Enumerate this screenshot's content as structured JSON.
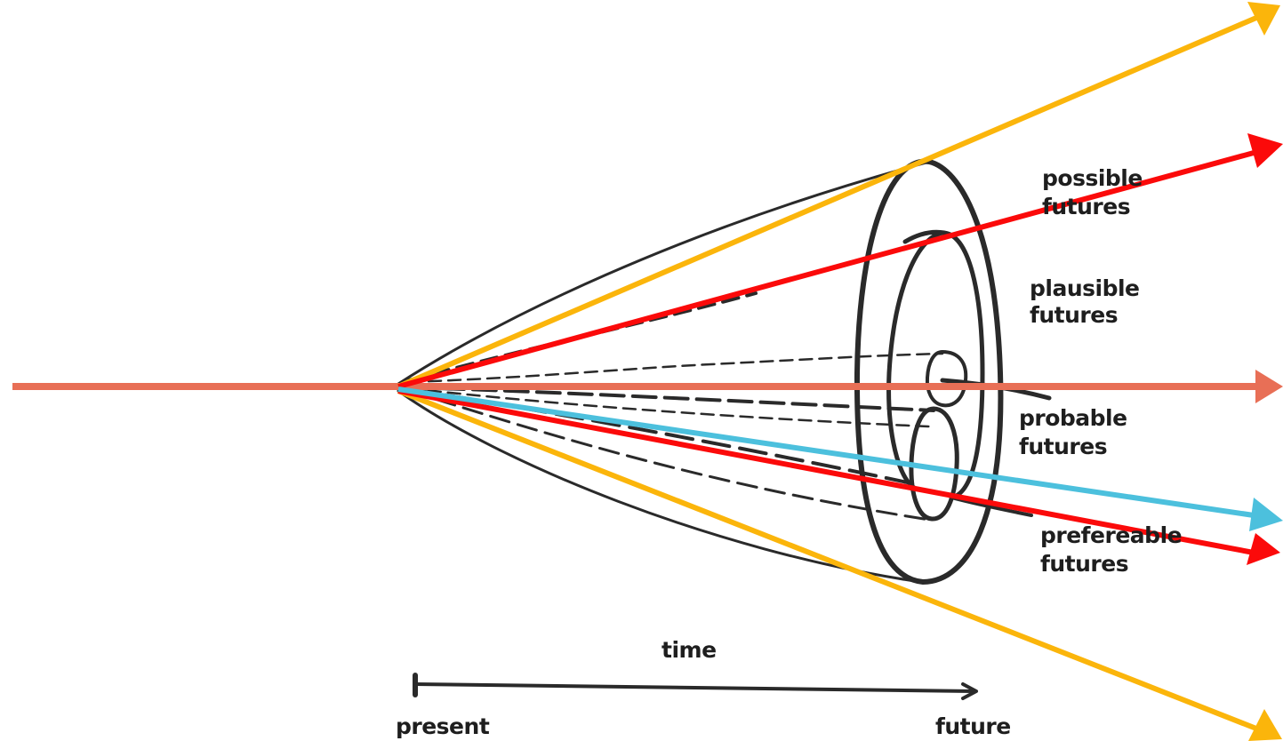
{
  "labels": {
    "possible_line1": "possible",
    "possible_line2": "futures",
    "plausible_line1": "plausible",
    "plausible_line2": "futures",
    "probable_line1": "probable",
    "probable_line2": "futures",
    "preferable_line1": "prefereable",
    "preferable_line2": "futures",
    "time": "time",
    "present": "present",
    "future": "future"
  },
  "colors": {
    "background": "#ffffff",
    "ink": "#2a2a2a",
    "possible": "#fbb50b",
    "plausible": "#fb0a0a",
    "probable": "#e86f56",
    "preferable": "#4cc0dd"
  }
}
